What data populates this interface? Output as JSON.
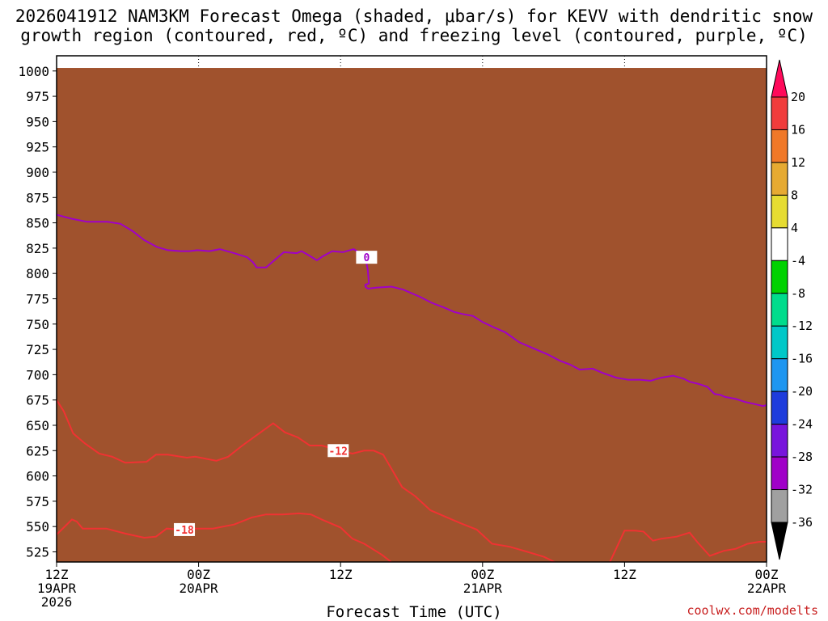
{
  "chart_data": {
    "type": "heatmap",
    "title_line1": "2026041912 NAM3KM Forecast Omega (shaded, μbar/s) for KEVV with dendritic snow",
    "title_line2": "growth region (contoured, red, ºC) and freezing level (contoured, purple, ºC)",
    "xlabel": "Forecast Time (UTC)",
    "credit": "coolwx.com/modelts",
    "y_axis": {
      "unit": "hPa",
      "range": [
        1015,
        515
      ],
      "ticks": [
        "525",
        "550",
        "575",
        "600",
        "625",
        "650",
        "675",
        "700",
        "725",
        "750",
        "775",
        "800",
        "825",
        "850",
        "875",
        "900",
        "925",
        "950",
        "975",
        "1000"
      ]
    },
    "x_axis": {
      "unit": "forecast hour",
      "range": [
        0,
        60
      ],
      "ticks": [
        {
          "hour": 0,
          "line1": "12Z",
          "line2": "19APR",
          "line3": "2026"
        },
        {
          "hour": 12,
          "line1": "00Z",
          "line2": "20APR",
          "line3": ""
        },
        {
          "hour": 24,
          "line1": "12Z",
          "line2": "",
          "line3": ""
        },
        {
          "hour": 36,
          "line1": "00Z",
          "line2": "21APR",
          "line3": ""
        },
        {
          "hour": 48,
          "line1": "12Z",
          "line2": "",
          "line3": ""
        },
        {
          "hour": 60,
          "line1": "00Z",
          "line2": "22APR",
          "line3": ""
        }
      ]
    },
    "colorbar": {
      "labels": [
        "20",
        "16",
        "12",
        "8",
        "4",
        "-4",
        "-8",
        "-12",
        "-16",
        "-20",
        "-24",
        "-28",
        "-32",
        "-36"
      ],
      "colors": [
        "#ff0a5a",
        "#f03c3c",
        "#f07828",
        "#e6aa32",
        "#e6dc32",
        "#ffffff",
        "#00d200",
        "#00dc8c",
        "#00c8c8",
        "#1e96f0",
        "#1e3cdc",
        "#7814dc",
        "#a000c8",
        "#a0a0a0",
        "#000000"
      ]
    },
    "shaded_regions": [
      {
        "level": 4,
        "color": "#e6dc32",
        "points": [
          [
            0,
            528
          ],
          [
            7.6,
            528
          ],
          [
            7.6,
            652
          ],
          [
            5.8,
            605
          ],
          [
            4.2,
            585
          ],
          [
            3.6,
            640
          ],
          [
            2.2,
            600
          ],
          [
            1.8,
            665
          ],
          [
            1.3,
            710
          ],
          [
            0.6,
            770
          ],
          [
            0.2,
            725
          ],
          [
            0,
            700
          ]
        ]
      },
      {
        "level": 8,
        "color": "#e6aa32",
        "points": [
          [
            0,
            528
          ],
          [
            2.4,
            528
          ],
          [
            2.3,
            585
          ],
          [
            2.0,
            615
          ],
          [
            1.9,
            650
          ],
          [
            1.3,
            630
          ],
          [
            0.6,
            690
          ],
          [
            0,
            680
          ]
        ]
      },
      {
        "level": 4,
        "color": "#e6dc32",
        "points": [
          [
            17.2,
            528
          ],
          [
            22.2,
            528
          ],
          [
            21.6,
            560
          ],
          [
            20.6,
            620
          ],
          [
            19.2,
            643
          ],
          [
            18.2,
            650
          ],
          [
            17.6,
            640
          ],
          [
            17.0,
            595
          ]
        ]
      },
      {
        "level": 8,
        "color": "#e6aa32",
        "points": [
          [
            18.8,
            528
          ],
          [
            19.6,
            528
          ],
          [
            19.6,
            600
          ],
          [
            19.2,
            632
          ],
          [
            18.8,
            605
          ]
        ]
      },
      {
        "level": 4,
        "color": "#e6dc32",
        "points": [
          [
            7.6,
            670
          ],
          [
            8.4,
            700
          ],
          [
            8.9,
            735
          ],
          [
            9.2,
            800
          ],
          [
            9.1,
            848
          ],
          [
            8.6,
            780
          ],
          [
            8.0,
            730
          ],
          [
            7.5,
            690
          ]
        ]
      },
      {
        "level": 4,
        "color": "#e6dc32",
        "points": [
          [
            10.6,
            760
          ],
          [
            11.0,
            720
          ],
          [
            12.6,
            688
          ],
          [
            13.9,
            663
          ],
          [
            14.4,
            690
          ],
          [
            14.1,
            760
          ],
          [
            13.2,
            790
          ],
          [
            11.6,
            780
          ],
          [
            10.8,
            775
          ]
        ]
      },
      {
        "level": 4,
        "color": "#e6dc32",
        "points": [
          [
            24.4,
            640
          ],
          [
            25.0,
            665
          ],
          [
            25.4,
            705
          ],
          [
            25.2,
            745
          ],
          [
            24.7,
            770
          ],
          [
            24.0,
            790
          ],
          [
            23.3,
            850
          ],
          [
            23.0,
            780
          ],
          [
            22.6,
            760
          ],
          [
            23.5,
            730
          ],
          [
            23.7,
            690
          ]
        ]
      },
      {
        "level": 4,
        "color": "#e6dc32",
        "points": [
          [
            24.7,
            800
          ],
          [
            25.5,
            820
          ],
          [
            26.1,
            860
          ],
          [
            26.0,
            900
          ],
          [
            25.6,
            950
          ],
          [
            25.3,
            970
          ],
          [
            24.7,
            925
          ],
          [
            25.0,
            880
          ]
        ]
      },
      {
        "level": 4,
        "color": "#e6dc32",
        "points": [
          [
            28.5,
            845
          ],
          [
            30.1,
            845
          ],
          [
            30.2,
            858
          ],
          [
            29.5,
            873
          ],
          [
            28.8,
            873
          ],
          [
            28.4,
            860
          ]
        ]
      },
      {
        "level": 4,
        "color": "#e6dc32",
        "points": [
          [
            32.1,
            812
          ],
          [
            33.0,
            812
          ],
          [
            32.9,
            843
          ],
          [
            32.2,
            845
          ],
          [
            32.0,
            832
          ]
        ]
      },
      {
        "level": 4,
        "color": "#e6dc32",
        "points": [
          [
            35.4,
            833
          ],
          [
            36.7,
            833
          ],
          [
            36.7,
            867
          ],
          [
            36.0,
            865
          ],
          [
            35.4,
            843
          ]
        ]
      },
      {
        "level": 4,
        "color": "#e6dc32",
        "points": [
          [
            19.5,
            905
          ],
          [
            20.2,
            905
          ],
          [
            20.2,
            920
          ],
          [
            19.5,
            920
          ]
        ]
      },
      {
        "level": 4,
        "color": "#e6dc32",
        "points": [
          [
            23.0,
            890
          ],
          [
            23.4,
            890
          ],
          [
            23.4,
            922
          ],
          [
            23.0,
            922
          ]
        ]
      },
      {
        "level": -4,
        "color": "#00d200",
        "points": [
          [
            13.6,
            528
          ],
          [
            14.1,
            528
          ],
          [
            14.1,
            565
          ],
          [
            13.8,
            590
          ],
          [
            13.6,
            560
          ]
        ]
      },
      {
        "level": -4,
        "color": "#00d200",
        "points": [
          [
            19.9,
            657
          ],
          [
            20.7,
            705
          ],
          [
            21.5,
            780
          ],
          [
            21.9,
            850
          ],
          [
            21.4,
            870
          ],
          [
            20.7,
            860
          ],
          [
            20.2,
            820
          ],
          [
            19.0,
            820
          ],
          [
            18.1,
            800
          ],
          [
            17.4,
            755
          ],
          [
            17.9,
            700
          ]
        ]
      },
      {
        "level": -4,
        "color": "#00d200",
        "points": [
          [
            15.1,
            820
          ],
          [
            17.0,
            827
          ],
          [
            18.7,
            845
          ],
          [
            19.2,
            872
          ],
          [
            18.1,
            900
          ],
          [
            17.0,
            925
          ],
          [
            16.6,
            950
          ],
          [
            16.1,
            985
          ],
          [
            15.6,
            960
          ],
          [
            15.2,
            905
          ],
          [
            14.8,
            860
          ]
        ]
      },
      {
        "level": -4,
        "color": "#00d200",
        "points": [
          [
            50.1,
            678
          ],
          [
            50.7,
            690
          ],
          [
            50.5,
            745
          ],
          [
            49.8,
            783
          ],
          [
            48.8,
            796
          ],
          [
            48.0,
            820
          ],
          [
            47.6,
            770
          ],
          [
            48.0,
            725
          ]
        ]
      },
      {
        "level": -4,
        "color": "#00d200",
        "points": [
          [
            45.3,
            866
          ],
          [
            46.2,
            866
          ],
          [
            46.2,
            895
          ],
          [
            45.3,
            895
          ]
        ]
      },
      {
        "level": -8,
        "color": "#00dc8c",
        "points": [
          [
            19.5,
            700
          ],
          [
            20.7,
            745
          ],
          [
            21.2,
            800
          ],
          [
            21.2,
            840
          ],
          [
            20.4,
            810
          ],
          [
            19.0,
            790
          ],
          [
            18.6,
            745
          ],
          [
            19.0,
            715
          ]
        ]
      },
      {
        "level": -8,
        "color": "#00dc8c",
        "points": [
          [
            15.6,
            870
          ],
          [
            16.5,
            890
          ],
          [
            16.3,
            950
          ],
          [
            15.9,
            955
          ],
          [
            15.6,
            905
          ]
        ]
      },
      {
        "level": -12,
        "color": "#00c8c8",
        "points": [
          [
            19.6,
            720
          ],
          [
            20.3,
            745
          ],
          [
            20.1,
            770
          ],
          [
            19.6,
            760
          ]
        ]
      },
      {
        "level": -12,
        "color": "#00c8c8",
        "points": [
          [
            15.8,
            880
          ],
          [
            16.2,
            900
          ],
          [
            16.0,
            915
          ]
        ]
      }
    ],
    "series": [
      {
        "name": "-18",
        "color": "#f03232",
        "kind": "dgz-isotherm",
        "label_at_hour": 10.8,
        "x": [
          0,
          1.3,
          1.7,
          2.2,
          4.2,
          5.8,
          7.4,
          8.4,
          9.3,
          10.4,
          11.6,
          13.2,
          14.1,
          15.0,
          16.5,
          17.7,
          19.1,
          20.5,
          21.5,
          22.4,
          24.0,
          25.0,
          26.0,
          27.5,
          28.5,
          29.5
        ],
        "y": [
          542,
          557,
          555,
          548,
          548,
          543,
          539,
          540,
          548,
          547,
          548,
          548,
          550,
          552,
          559,
          562,
          562,
          563,
          562,
          557,
          549,
          538,
          533,
          522,
          513,
          503
        ]
      },
      {
        "name": "-12",
        "color": "#f03232",
        "kind": "dgz-isotherm",
        "label_at_hour": 23.8,
        "x": [
          0,
          0.6,
          1.4,
          2.4,
          3.6,
          4.7,
          5.8,
          7.6,
          8.4,
          9.4,
          11.0,
          11.7,
          13.5,
          14.5,
          15.7,
          17.0,
          18.3,
          19.3,
          20.4,
          21.4,
          22.4,
          24.0,
          25.0,
          26.0,
          26.8,
          27.6,
          28.4,
          29.2,
          30.3,
          31.6,
          33.0,
          34.2,
          35.5,
          36.8,
          38.3,
          39.8,
          41.2,
          42.6,
          43.9,
          44.9,
          45.7,
          46.4,
          48.0,
          48.9,
          49.6,
          50.4,
          51.1,
          52.4,
          53.5,
          54.2,
          55.2,
          56.4,
          57.4,
          58.4,
          59.4,
          60
        ],
        "y": [
          675,
          664,
          642,
          632,
          622,
          619,
          613,
          614,
          621,
          621,
          618,
          619,
          615,
          619,
          630,
          641,
          652,
          643,
          638,
          630,
          630,
          625,
          622,
          625,
          625,
          621,
          605,
          589,
          580,
          566,
          559,
          553,
          547,
          533,
          530,
          525,
          520,
          512,
          510,
          510,
          506,
          506,
          546,
          546,
          545,
          536,
          538,
          540,
          544,
          534,
          521,
          526,
          528,
          533,
          535,
          535
        ]
      },
      {
        "name": "0",
        "color": "#a000c8",
        "kind": "freezing-level",
        "label_at_hour": 26.2,
        "x": [
          0,
          1.3,
          2.6,
          4.3,
          5.4,
          6.4,
          7.4,
          8.5,
          9.4,
          10.5,
          11.2,
          11.9,
          12.9,
          13.8,
          15.0,
          16.1,
          16.6,
          16.9,
          17.7,
          18.4,
          19.2,
          20.3,
          20.7,
          21.3,
          22.0,
          22.5,
          23.3,
          24.2,
          25.1,
          25.7,
          26.1,
          26.3,
          26.4,
          26.1,
          26.1,
          26.3,
          27.0,
          28.3,
          29.3,
          30.7,
          31.7,
          32.8,
          33.6,
          34.3,
          35.2,
          36.0,
          36.9,
          37.9,
          39.1,
          40.3,
          41.5,
          42.5,
          43.4,
          44.2,
          45.3,
          46.1,
          47.3,
          48.3,
          49.3,
          50.2,
          51.1,
          52.1,
          53.0,
          53.5,
          54.2,
          55.0,
          55.6,
          56.1,
          56.5,
          57.4,
          58.2,
          59.0,
          59.7,
          60
        ],
        "y": [
          858,
          854,
          851,
          851,
          849,
          842,
          833,
          826,
          823,
          822,
          822,
          823,
          822,
          824,
          820,
          816,
          811,
          806,
          806,
          813,
          821,
          820,
          822,
          818,
          813,
          817,
          822,
          821,
          824,
          820,
          816,
          803,
          790,
          789,
          787,
          785,
          786,
          787,
          784,
          777,
          771,
          766,
          762,
          760,
          758,
          752,
          747,
          742,
          732,
          726,
          720,
          714,
          710,
          705,
          706,
          702,
          697,
          695,
          695,
          694,
          697,
          699,
          696,
          693,
          691,
          688,
          681,
          680,
          678,
          676,
          673,
          671,
          669,
          670
        ]
      }
    ],
    "terrain": {
      "color": "#a0522d",
      "level_hpa": 1003
    }
  }
}
